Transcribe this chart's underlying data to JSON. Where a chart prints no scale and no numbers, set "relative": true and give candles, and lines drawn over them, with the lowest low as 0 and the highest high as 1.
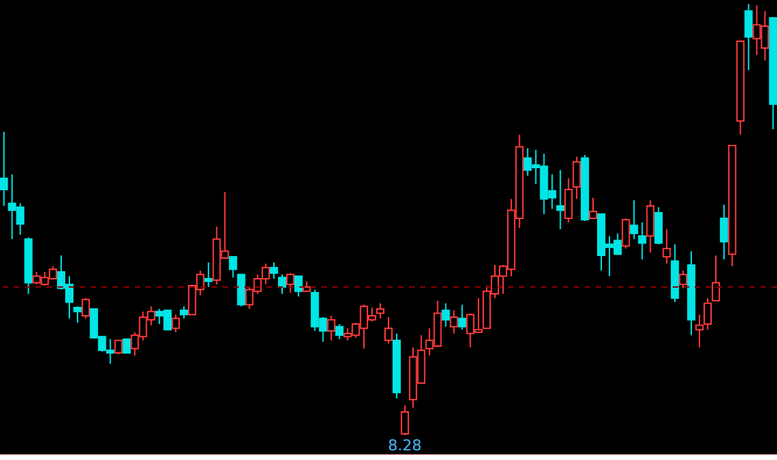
{
  "chart_data": {
    "type": "candlestick",
    "relative": true,
    "categories": [
      null,
      null,
      null,
      null,
      null,
      null,
      null,
      null,
      null,
      null,
      null,
      null,
      null,
      null,
      null,
      null,
      null,
      null,
      null,
      null,
      null,
      null,
      null,
      null,
      null,
      null,
      null,
      null,
      null,
      null,
      null,
      null,
      null,
      null,
      null,
      null,
      null,
      null,
      null,
      null,
      null,
      null,
      null,
      null,
      null,
      null,
      null,
      null,
      null,
      null,
      null,
      null,
      null,
      null,
      null,
      null,
      null,
      null,
      null,
      null,
      null,
      null,
      null,
      null,
      null,
      null,
      null,
      null,
      null,
      null,
      null,
      null,
      null,
      null,
      null,
      null,
      null,
      null,
      null,
      null,
      null,
      null,
      null,
      null,
      null,
      null,
      null,
      null,
      null,
      null,
      null,
      null,
      null,
      null,
      null
    ],
    "ohlc": [
      [
        0.596,
        0.704,
        0.532,
        0.57
      ],
      [
        0.538,
        0.605,
        0.455,
        0.522
      ],
      [
        0.529,
        0.538,
        0.465,
        0.49
      ],
      [
        0.455,
        0.459,
        0.328,
        0.354
      ],
      [
        0.354,
        0.379,
        0.35,
        0.369
      ],
      [
        0.35,
        0.379,
        0.347,
        0.366
      ],
      [
        0.363,
        0.392,
        0.363,
        0.385
      ],
      [
        0.379,
        0.417,
        0.338,
        0.341
      ],
      [
        0.35,
        0.369,
        0.271,
        0.309
      ],
      [
        0.296,
        0.299,
        0.261,
        0.287
      ],
      [
        0.277,
        0.318,
        0.271,
        0.315
      ],
      [
        0.293,
        0.293,
        0.226,
        0.226
      ],
      [
        0.229,
        0.229,
        0.194,
        0.197
      ],
      [
        0.197,
        0.223,
        0.166,
        0.191
      ],
      [
        0.191,
        0.22,
        0.188,
        0.22
      ],
      [
        0.223,
        0.223,
        0.191,
        0.191
      ],
      [
        0.201,
        0.239,
        0.185,
        0.232
      ],
      [
        0.229,
        0.287,
        0.22,
        0.274
      ],
      [
        0.268,
        0.299,
        0.255,
        0.287
      ],
      [
        0.287,
        0.293,
        0.258,
        0.277
      ],
      [
        0.29,
        0.29,
        0.245,
        0.245
      ],
      [
        0.248,
        0.28,
        0.239,
        0.271
      ],
      [
        0.29,
        0.299,
        0.271,
        0.28
      ],
      [
        0.28,
        0.347,
        0.28,
        0.347
      ],
      [
        0.338,
        0.382,
        0.325,
        0.373
      ],
      [
        0.363,
        0.401,
        0.344,
        0.357
      ],
      [
        0.36,
        0.484,
        0.35,
        0.455
      ],
      [
        0.411,
        0.564,
        0.411,
        0.427
      ],
      [
        0.414,
        0.414,
        0.366,
        0.385
      ],
      [
        0.373,
        0.373,
        0.299,
        0.303
      ],
      [
        0.303,
        0.344,
        0.293,
        0.338
      ],
      [
        0.334,
        0.373,
        0.328,
        0.363
      ],
      [
        0.363,
        0.398,
        0.35,
        0.389
      ],
      [
        0.389,
        0.401,
        0.363,
        0.376
      ],
      [
        0.366,
        0.373,
        0.328,
        0.344
      ],
      [
        0.35,
        0.376,
        0.331,
        0.373
      ],
      [
        0.369,
        0.369,
        0.322,
        0.334
      ],
      [
        0.334,
        0.357,
        0.334,
        0.344
      ],
      [
        0.331,
        0.338,
        0.242,
        0.252
      ],
      [
        0.271,
        0.274,
        0.217,
        0.242
      ],
      [
        0.242,
        0.277,
        0.22,
        0.268
      ],
      [
        0.252,
        0.258,
        0.223,
        0.232
      ],
      [
        0.229,
        0.248,
        0.22,
        0.236
      ],
      [
        0.232,
        0.261,
        0.226,
        0.258
      ],
      [
        0.248,
        0.303,
        0.201,
        0.299
      ],
      [
        0.268,
        0.296,
        0.264,
        0.277
      ],
      [
        0.283,
        0.306,
        0.271,
        0.293
      ],
      [
        0.22,
        0.274,
        0.213,
        0.248
      ],
      [
        0.22,
        0.236,
        0.086,
        0.099
      ],
      [
        0.003,
        0.07,
        0.0,
        0.054
      ],
      [
        0.083,
        0.204,
        0.064,
        0.182
      ],
      [
        0.121,
        0.232,
        0.121,
        0.197
      ],
      [
        0.201,
        0.248,
        0.185,
        0.22
      ],
      [
        0.207,
        0.312,
        0.204,
        0.283
      ],
      [
        0.29,
        0.306,
        0.252,
        0.268
      ],
      [
        0.252,
        0.29,
        0.236,
        0.274
      ],
      [
        0.271,
        0.303,
        0.245,
        0.252
      ],
      [
        0.236,
        0.283,
        0.204,
        0.28
      ],
      [
        0.239,
        0.318,
        0.239,
        0.245
      ],
      [
        0.248,
        0.347,
        0.248,
        0.334
      ],
      [
        0.328,
        0.395,
        0.318,
        0.369
      ],
      [
        0.369,
        0.395,
        0.328,
        0.392
      ],
      [
        0.385,
        0.548,
        0.369,
        0.522
      ],
      [
        0.503,
        0.697,
        0.481,
        0.669
      ],
      [
        0.643,
        0.666,
        0.602,
        0.615
      ],
      [
        0.627,
        0.662,
        0.583,
        0.621
      ],
      [
        0.624,
        0.653,
        0.513,
        0.548
      ],
      [
        0.567,
        0.605,
        0.525,
        0.551
      ],
      [
        0.532,
        0.615,
        0.478,
        0.522
      ],
      [
        0.503,
        0.596,
        0.494,
        0.57
      ],
      [
        0.576,
        0.646,
        0.548,
        0.634
      ],
      [
        0.643,
        0.65,
        0.497,
        0.5
      ],
      [
        0.503,
        0.551,
        0.503,
        0.519
      ],
      [
        0.513,
        0.513,
        0.382,
        0.417
      ],
      [
        0.443,
        0.462,
        0.369,
        0.436
      ],
      [
        0.452,
        0.468,
        0.42,
        0.42
      ],
      [
        0.439,
        0.503,
        0.433,
        0.5
      ],
      [
        0.487,
        0.545,
        0.455,
        0.468
      ],
      [
        0.462,
        0.494,
        0.408,
        0.446
      ],
      [
        0.462,
        0.545,
        0.424,
        0.532
      ],
      [
        0.516,
        0.529,
        0.443,
        0.446
      ],
      [
        0.414,
        0.478,
        0.398,
        0.433
      ],
      [
        0.404,
        0.443,
        0.309,
        0.318
      ],
      [
        0.35,
        0.382,
        0.341,
        0.373
      ],
      [
        0.395,
        0.427,
        0.232,
        0.268
      ],
      [
        0.245,
        0.28,
        0.204,
        0.255
      ],
      [
        0.258,
        0.318,
        0.245,
        0.306
      ],
      [
        0.312,
        0.417,
        0.312,
        0.354
      ],
      [
        0.503,
        0.535,
        0.408,
        0.449
      ],
      [
        0.42,
        0.672,
        0.392,
        0.672
      ],
      [
        0.729,
        0.914,
        0.697,
        0.914
      ],
      [
        0.984,
        1.0,
        0.847,
        0.924
      ],
      [
        0.92,
        0.997,
        0.882,
        0.952
      ],
      [
        0.898,
        0.984,
        0.869,
        0.949
      ],
      [
        0.968,
        0.968,
        0.71,
        0.768
      ]
    ],
    "colors": [
      "#00e5e5",
      "#00e5e5",
      "#00e5e5",
      "#00e5e5",
      "#ff3b3b",
      "#ff3b3b",
      "#ff3b3b",
      "#00e5e5",
      "#00e5e5",
      "#00e5e5",
      "#ff3b3b",
      "#00e5e5",
      "#00e5e5",
      "#00e5e5",
      "#ff3b3b",
      "#00e5e5",
      "#ff3b3b",
      "#ff3b3b",
      "#ff3b3b",
      "#00e5e5",
      "#00e5e5",
      "#ff3b3b",
      "#00e5e5",
      "#ff3b3b",
      "#ff3b3b",
      "#00e5e5",
      "#ff3b3b",
      "#ff3b3b",
      "#00e5e5",
      "#00e5e5",
      "#ff3b3b",
      "#ff3b3b",
      "#ff3b3b",
      "#00e5e5",
      "#00e5e5",
      "#ff3b3b",
      "#00e5e5",
      "#ff3b3b",
      "#00e5e5",
      "#00e5e5",
      "#ff3b3b",
      "#00e5e5",
      "#ff3b3b",
      "#ff3b3b",
      "#ff3b3b",
      "#ff3b3b",
      "#ff3b3b",
      "#ff3b3b",
      "#00e5e5",
      "#ff3b3b",
      "#ff3b3b",
      "#ff3b3b",
      "#ff3b3b",
      "#ff3b3b",
      "#00e5e5",
      "#ff3b3b",
      "#00e5e5",
      "#ff3b3b",
      "#ff3b3b",
      "#ff3b3b",
      "#ff3b3b",
      "#ff3b3b",
      "#ff3b3b",
      "#ff3b3b",
      "#00e5e5",
      "#00e5e5",
      "#00e5e5",
      "#00e5e5",
      "#00e5e5",
      "#ff3b3b",
      "#ff3b3b",
      "#00e5e5",
      "#ff3b3b",
      "#00e5e5",
      "#00e5e5",
      "#00e5e5",
      "#ff3b3b",
      "#00e5e5",
      "#00e5e5",
      "#ff3b3b",
      "#00e5e5",
      "#ff3b3b",
      "#00e5e5",
      "#ff3b3b",
      "#00e5e5",
      "#ff3b3b",
      "#ff3b3b",
      "#ff3b3b",
      "#00e5e5",
      "#ff3b3b",
      "#ff3b3b",
      "#00e5e5",
      "#ff3b3b",
      "#ff3b3b",
      "#00e5e5"
    ],
    "ref_lines": [
      {
        "axis": "y",
        "value": 0.344,
        "color": "#8b0000",
        "line_style": "dashed"
      }
    ],
    "annotations": [
      "8.28"
    ]
  }
}
